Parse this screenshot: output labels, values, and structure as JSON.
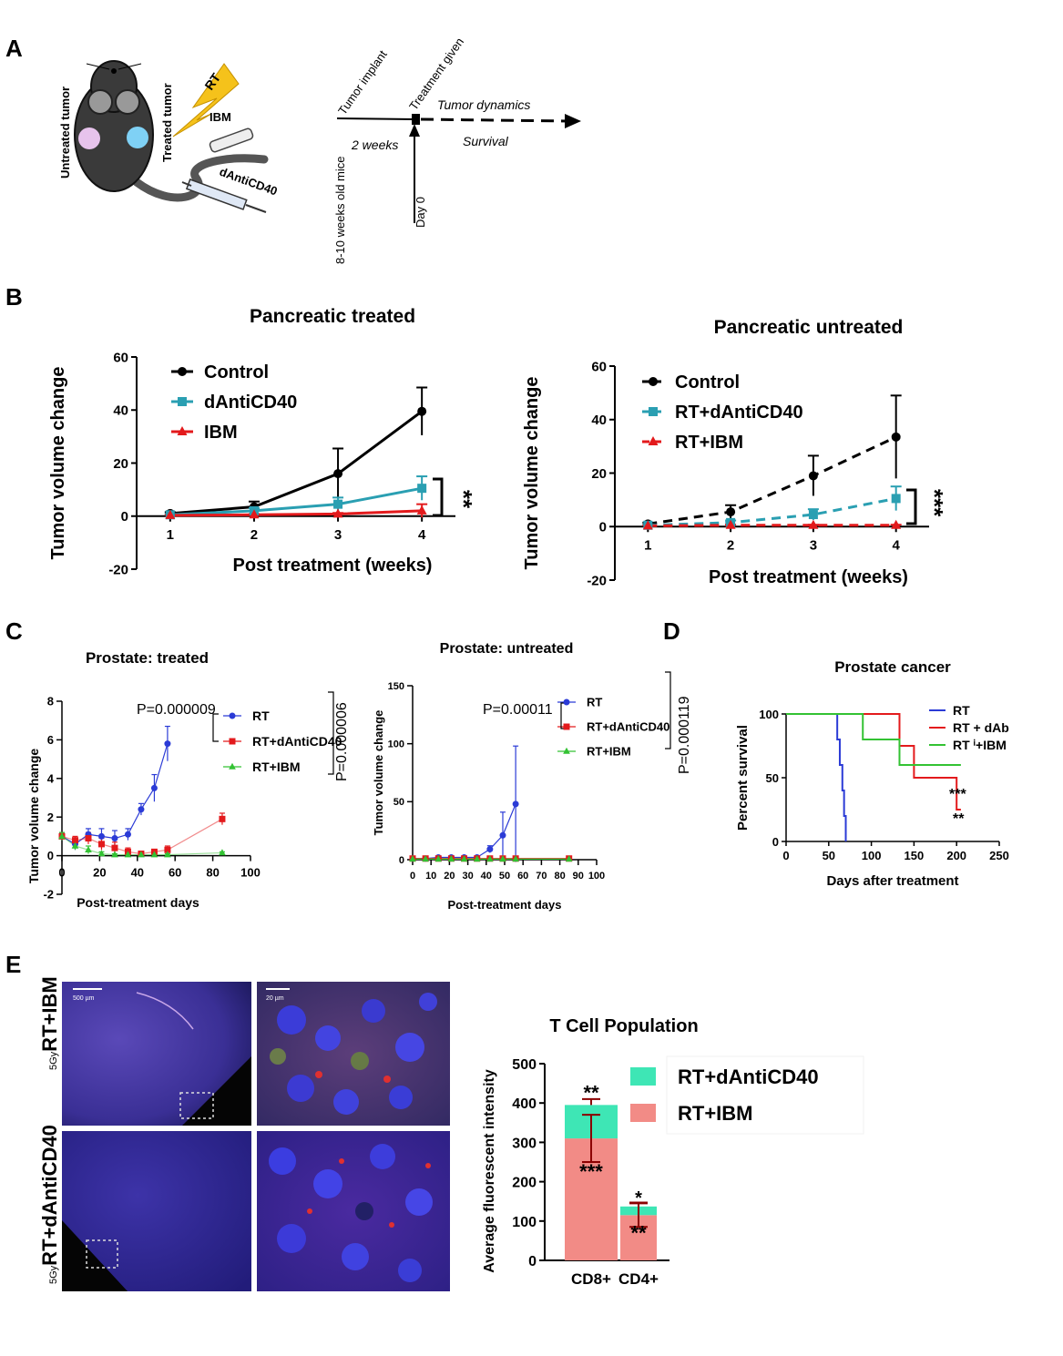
{
  "panels": {
    "A": "A",
    "B": "B",
    "C": "C",
    "D": "D",
    "E": "E"
  },
  "panelA": {
    "untreated_tumor": "Untreated tumor",
    "treated_tumor": "Treated tumor",
    "rt": "RT",
    "ibm": "IBM",
    "danticd40": "dAntiCD40",
    "age": "8-10 weeks old mice",
    "tumor_implant": "Tumor implant",
    "weeks": "2 weeks",
    "treatment_given": "Treatment given",
    "tumor_dynamics": "Tumor dynamics",
    "survival": "Survival",
    "day0": "Day 0"
  },
  "chart_data": [
    {
      "id": "B1",
      "type": "line",
      "title": "Pancreatic treated",
      "xlabel": "Post treatment (weeks)",
      "ylabel": "Tumor volume change",
      "x": [
        1,
        2,
        3,
        4
      ],
      "xlim": [
        0.6,
        4.4
      ],
      "ylim": [
        -20,
        60
      ],
      "yticks": [
        -20,
        0,
        20,
        40,
        60
      ],
      "series": [
        {
          "name": "Control",
          "values": [
            1,
            3.5,
            16,
            39.5
          ],
          "err": [
            0.5,
            2,
            9.5,
            9
          ],
          "color": "#000000",
          "marker": "circle",
          "dash": false
        },
        {
          "name": "dAntiCD40",
          "values": [
            0.5,
            2,
            4.5,
            10.5
          ],
          "err": [
            0.3,
            1,
            2.5,
            4.5
          ],
          "color": "#2a9fb2",
          "marker": "square",
          "dash": false
        },
        {
          "name": "IBM",
          "values": [
            0.3,
            0.5,
            0.8,
            2
          ],
          "err": [
            0.2,
            0.3,
            0.4,
            2.5
          ],
          "color": "#e31a1c",
          "marker": "triangle",
          "dash": false
        }
      ],
      "significance": "**"
    },
    {
      "id": "B2",
      "type": "line",
      "title": "Pancreatic untreated",
      "xlabel": "Post treatment (weeks)",
      "ylabel": "Tumor volume change",
      "x": [
        1,
        2,
        3,
        4
      ],
      "xlim": [
        0.6,
        4.4
      ],
      "ylim": [
        -20,
        60
      ],
      "yticks": [
        -20,
        0,
        20,
        40,
        60
      ],
      "series": [
        {
          "name": "Control",
          "values": [
            1,
            5.5,
            19,
            33.5
          ],
          "err": [
            0.5,
            2.5,
            7.5,
            15.5
          ],
          "color": "#000000",
          "marker": "circle",
          "dash": true
        },
        {
          "name": "RT+dAntiCD40",
          "values": [
            0.5,
            1.5,
            4.5,
            10.5
          ],
          "err": [
            0.3,
            0.8,
            2,
            4.5
          ],
          "color": "#2a9fb2",
          "marker": "square",
          "dash": true
        },
        {
          "name": "RT+IBM",
          "values": [
            0.3,
            0.5,
            0.5,
            0.5
          ],
          "err": [
            0.2,
            0.2,
            0.2,
            0.2
          ],
          "color": "#e31a1c",
          "marker": "triangle",
          "dash": true
        }
      ],
      "significance": "***"
    },
    {
      "id": "C1",
      "type": "line",
      "title": "Prostate: treated",
      "xlabel": "Post-treatment days",
      "ylabel": "Tumor volume change",
      "xlim": [
        0,
        100
      ],
      "ylim": [
        -2,
        8
      ],
      "xticks": [
        0,
        20,
        40,
        60,
        80,
        100
      ],
      "yticks": [
        -2,
        0,
        2,
        4,
        6,
        8
      ],
      "series": [
        {
          "name": "RT",
          "x": [
            0,
            7,
            14,
            21,
            28,
            35,
            42,
            49,
            56
          ],
          "values": [
            1,
            0.6,
            1.1,
            1,
            0.9,
            1.1,
            2.4,
            3.5,
            5.8
          ],
          "err": [
            0.2,
            0.3,
            0.3,
            0.4,
            0.4,
            0.3,
            0.3,
            0.7,
            0.9
          ],
          "color": "#2b3bd6",
          "marker": "circle"
        },
        {
          "name": "RT+dAntiCD40",
          "x": [
            0,
            7,
            14,
            21,
            28,
            35,
            42,
            49,
            56,
            85
          ],
          "values": [
            1,
            0.8,
            0.9,
            0.6,
            0.4,
            0.2,
            0.1,
            0.2,
            0.3,
            1.9
          ],
          "err": [
            0.2,
            0.2,
            0.3,
            0.3,
            0.3,
            0.2,
            0.1,
            0.1,
            0.2,
            0.3
          ],
          "color": "#e31a1c",
          "marker": "square"
        },
        {
          "name": "RT+IBM",
          "x": [
            0,
            7,
            14,
            21,
            28,
            35,
            42,
            49,
            56,
            85
          ],
          "values": [
            1,
            0.5,
            0.3,
            0.1,
            0.05,
            0.05,
            0.05,
            0.05,
            0.05,
            0.15
          ],
          "err": [
            0.2,
            0.2,
            0.2,
            0.1,
            0.05,
            0.05,
            0.05,
            0.05,
            0.05,
            0.05
          ],
          "color": "#33c233",
          "marker": "triangle"
        }
      ],
      "pvalue_inner": "P=0.000009",
      "pvalue_outer": "P=0.000006"
    },
    {
      "id": "C2",
      "type": "line",
      "title": "Prostate: untreated",
      "xlabel": "Post-treatment days",
      "ylabel": "Tumor volume change",
      "xlim": [
        0,
        100
      ],
      "ylim": [
        0,
        150
      ],
      "xticks": [
        0,
        10,
        20,
        30,
        40,
        50,
        60,
        70,
        80,
        90,
        100
      ],
      "yticks": [
        0,
        50,
        100,
        150
      ],
      "series": [
        {
          "name": "RT",
          "x": [
            0,
            7,
            14,
            21,
            28,
            35,
            42,
            49,
            56
          ],
          "values": [
            1,
            1,
            2,
            2,
            2,
            2,
            9,
            21,
            48
          ],
          "err": [
            0.5,
            0.5,
            0.5,
            0.5,
            0.5,
            0.5,
            3,
            20,
            50
          ],
          "color": "#2b3bd6",
          "marker": "circle"
        },
        {
          "name": "RT+dAntiCD40",
          "x": [
            0,
            7,
            14,
            21,
            28,
            35,
            42,
            49,
            56,
            85
          ],
          "values": [
            1,
            1,
            1,
            1,
            1,
            1,
            1,
            1,
            1,
            1
          ],
          "err": [
            0.3,
            0.3,
            0.3,
            0.3,
            0.3,
            0.3,
            0.3,
            0.3,
            0.3,
            0.3
          ],
          "color": "#e31a1c",
          "marker": "square"
        },
        {
          "name": "RT+IBM",
          "x": [
            0,
            7,
            14,
            21,
            28,
            35,
            42,
            49,
            56,
            85
          ],
          "values": [
            0.5,
            0.5,
            0.5,
            0.5,
            0.5,
            0.5,
            0.5,
            0.5,
            0.5,
            0.5
          ],
          "err": [
            0,
            0,
            0,
            0,
            0,
            0,
            0,
            0,
            0,
            0
          ],
          "color": "#33c233",
          "marker": "triangle"
        }
      ],
      "pvalue_inner": "P=0.00011",
      "pvalue_outer": "P=0.000119"
    },
    {
      "id": "D",
      "type": "line",
      "title": "Prostate cancer",
      "xlabel": "Days after treatment",
      "ylabel": "Percent survival",
      "xlim": [
        0,
        250
      ],
      "ylim": [
        0,
        100
      ],
      "xticks": [
        0,
        50,
        100,
        150,
        200,
        250
      ],
      "yticks": [
        0,
        50,
        100
      ],
      "series": [
        {
          "name": "RT",
          "steps": [
            [
              0,
              100
            ],
            [
              60,
              100
            ],
            [
              60,
              80
            ],
            [
              63,
              80
            ],
            [
              63,
              60
            ],
            [
              66,
              60
            ],
            [
              66,
              40
            ],
            [
              68,
              40
            ],
            [
              68,
              20
            ],
            [
              70,
              20
            ],
            [
              70,
              0
            ]
          ],
          "color": "#2b3bd6"
        },
        {
          "name": "RT + dAb",
          "steps": [
            [
              0,
              100
            ],
            [
              133,
              100
            ],
            [
              133,
              75
            ],
            [
              150,
              75
            ],
            [
              150,
              50
            ],
            [
              200,
              50
            ],
            [
              200,
              25
            ],
            [
              205,
              25
            ]
          ],
          "color": "#e31a1c"
        },
        {
          "name": "RT ⁱ+IBM",
          "steps": [
            [
              0,
              100
            ],
            [
              90,
              100
            ],
            [
              90,
              80
            ],
            [
              133,
              80
            ],
            [
              133,
              60
            ],
            [
              205,
              60
            ]
          ],
          "color": "#33c233"
        }
      ],
      "sig_ibm": "***",
      "sig_dab": "**"
    },
    {
      "id": "E",
      "type": "bar",
      "title": "T Cell Population",
      "ylabel": "Average fluorescent intensity",
      "categories": [
        "CD8+",
        "CD4+"
      ],
      "ylim": [
        0,
        500
      ],
      "yticks": [
        0,
        100,
        200,
        300,
        400,
        500
      ],
      "series": [
        {
          "name": "RT+IBM",
          "values": [
            310,
            115
          ],
          "err": [
            60,
            30
          ],
          "color": "#f28b86",
          "stars": [
            "***",
            "**"
          ]
        },
        {
          "name": "RT+dAntiCD40",
          "values": [
            85,
            22
          ],
          "err": [
            15,
            10
          ],
          "color": "#3ee6b5",
          "stars": [
            "**",
            "*"
          ]
        }
      ],
      "stacked": true
    }
  ],
  "panelE_images": {
    "row1_label": "RT+IBM",
    "row2_label": "RT+dAntiCD40",
    "dose": "5Gy",
    "scale1": "500 µm",
    "scale2": "20 µm"
  }
}
